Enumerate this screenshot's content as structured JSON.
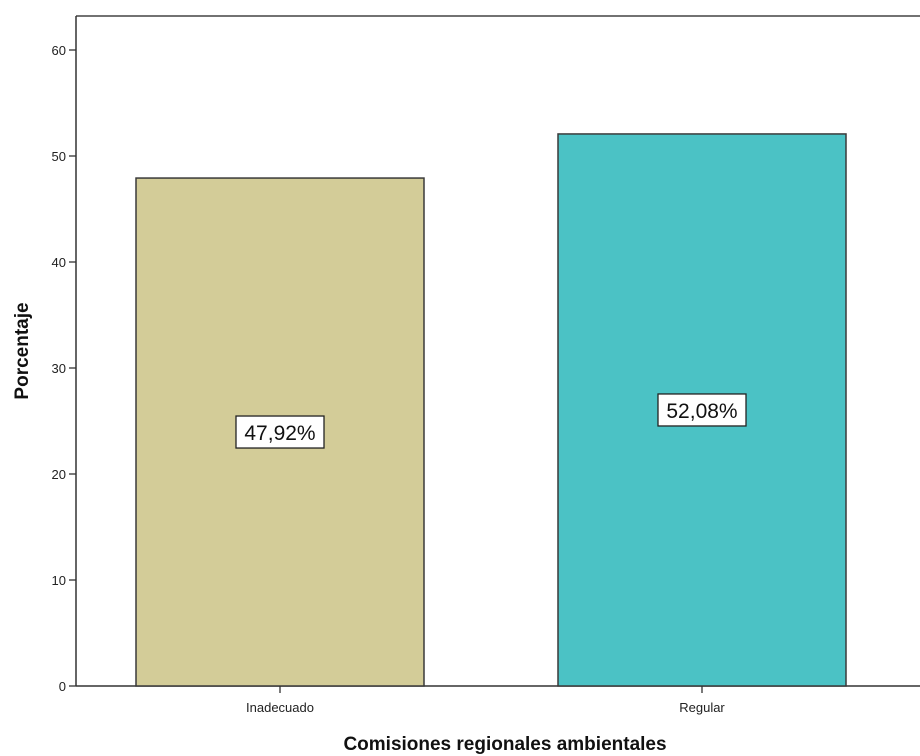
{
  "chart_data": {
    "type": "bar",
    "title": "",
    "xlabel": "Comisiones regionales ambientales",
    "ylabel": "Porcentaje",
    "ylim": [
      0,
      63
    ],
    "yticks": [
      0,
      10,
      20,
      30,
      40,
      50,
      60
    ],
    "grid": false,
    "categories": [
      "Inadecuado",
      "Regular"
    ],
    "values": [
      47.92,
      52.08
    ],
    "data_labels": [
      "47,92%",
      "52,08%"
    ],
    "colors": {
      "bars": [
        "#d3cc98",
        "#4bc2c5"
      ],
      "bar_outline": "#3a3a3a",
      "axis": "#333333"
    }
  }
}
